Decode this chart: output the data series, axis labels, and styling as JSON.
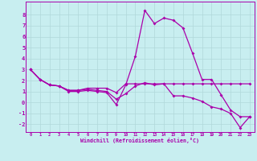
{
  "title": "",
  "xlabel": "Windchill (Refroidissement éolien,°C)",
  "background_color": "#c8eef0",
  "grid_color": "#b0d8da",
  "line_color": "#aa00aa",
  "hours": [
    0,
    1,
    2,
    3,
    4,
    5,
    6,
    7,
    8,
    9,
    10,
    11,
    12,
    13,
    14,
    15,
    16,
    17,
    18,
    19,
    20,
    21,
    22,
    23
  ],
  "series1": [
    3.0,
    2.1,
    1.6,
    1.5,
    1.0,
    1.0,
    1.1,
    1.0,
    0.9,
    -0.2,
    1.6,
    4.2,
    8.4,
    7.2,
    7.7,
    7.5,
    6.8,
    4.5,
    2.1,
    2.1,
    0.7,
    -0.7,
    -1.3,
    -1.3
  ],
  "series2": [
    3.0,
    2.1,
    1.6,
    1.5,
    1.1,
    1.1,
    1.3,
    1.3,
    1.3,
    0.9,
    1.7,
    1.7,
    1.7,
    1.7,
    1.7,
    1.7,
    1.7,
    1.7,
    1.7,
    1.7,
    1.7,
    1.7,
    1.7,
    1.7
  ],
  "series3": [
    3.0,
    2.1,
    1.6,
    1.5,
    1.1,
    1.1,
    1.2,
    1.1,
    1.0,
    0.3,
    0.8,
    1.5,
    1.8,
    1.6,
    1.7,
    0.6,
    0.6,
    0.4,
    0.1,
    -0.4,
    -0.6,
    -1.0,
    -2.3,
    -1.3
  ],
  "ylim": [
    -2.7,
    9.2
  ],
  "yticks": [
    -2,
    -1,
    0,
    1,
    2,
    3,
    4,
    5,
    6,
    7,
    8
  ],
  "xlim": [
    -0.5,
    23.5
  ],
  "marker_size": 2.0,
  "line_width": 0.9
}
